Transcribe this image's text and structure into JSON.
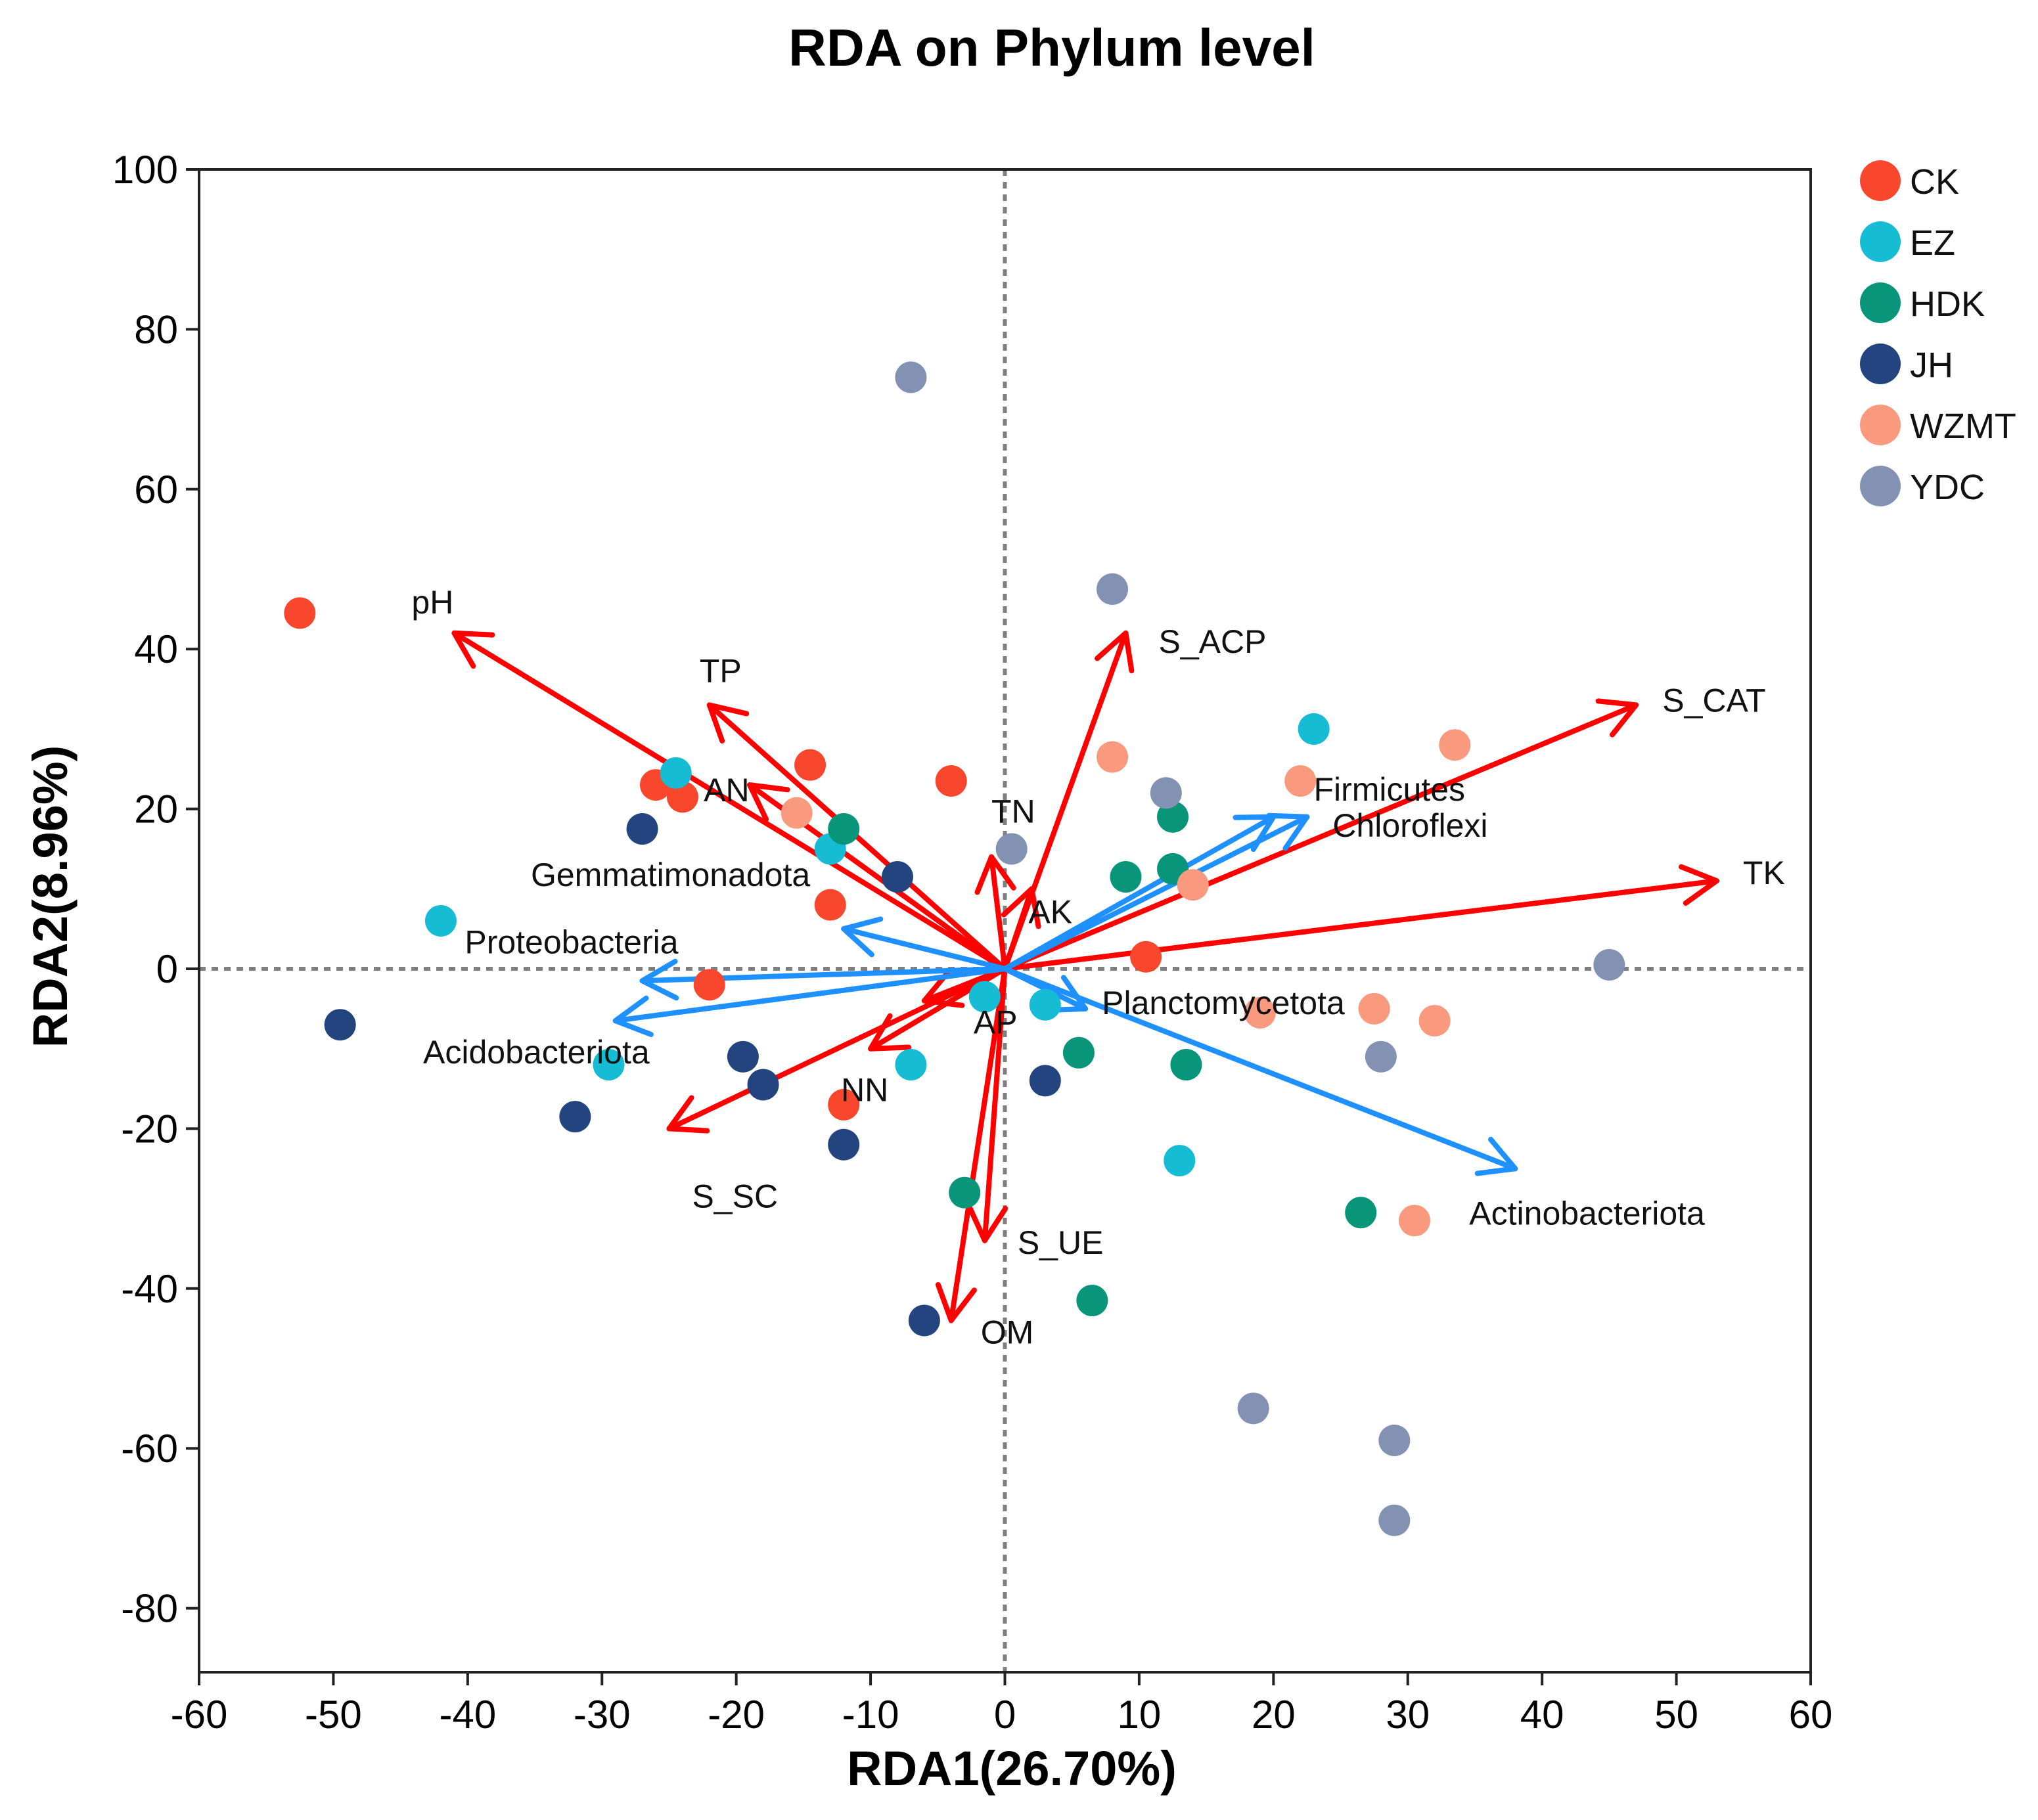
{
  "chart_data": {
    "type": "scatter",
    "title": "RDA on Phylum level",
    "xlabel": "RDA1(26.70%)",
    "ylabel": "RDA2(8.96%)",
    "xlim": [
      -60,
      60
    ],
    "ylim": [
      -88,
      100
    ],
    "xticks": [
      -60,
      -50,
      -40,
      -30,
      -20,
      -10,
      0,
      10,
      20,
      30,
      40,
      50,
      60
    ],
    "yticks": [
      -80,
      -60,
      -40,
      -20,
      0,
      20,
      40,
      60,
      80,
      100
    ],
    "reference_lines": {
      "x": 0,
      "y": 0,
      "style": "dotted",
      "color": "#808080"
    },
    "legend_position": "right",
    "colors": {
      "env_arrow": "#ff0000",
      "species_arrow": "#1e90ff",
      "CK": "#f8472d",
      "EZ": "#15bcd3",
      "HDK": "#09957a",
      "JH": "#23447e",
      "WZMT": "#f99a7e",
      "YDC": "#8391b3"
    },
    "series": [
      {
        "name": "CK",
        "color": "#f8472d",
        "points": [
          [
            -52.5,
            44.5
          ],
          [
            -26,
            23
          ],
          [
            -24,
            21.5
          ],
          [
            -14.5,
            25.5
          ],
          [
            -4,
            23.5
          ],
          [
            -13,
            8
          ],
          [
            -22,
            -2
          ],
          [
            -12,
            -17
          ],
          [
            10.5,
            1.5
          ]
        ]
      },
      {
        "name": "EZ",
        "color": "#15bcd3",
        "points": [
          [
            -24.5,
            24.5
          ],
          [
            -13,
            15
          ],
          [
            -42,
            6
          ],
          [
            -29.5,
            -12
          ],
          [
            -7,
            -12
          ],
          [
            -1.5,
            -3.5
          ],
          [
            3,
            -4.5
          ],
          [
            23,
            30
          ],
          [
            13,
            -24
          ]
        ]
      },
      {
        "name": "HDK",
        "color": "#09957a",
        "points": [
          [
            -12,
            17.5
          ],
          [
            9,
            11.5
          ],
          [
            12.5,
            19
          ],
          [
            12.5,
            12.5
          ],
          [
            5.5,
            -10.5
          ],
          [
            13.5,
            -12
          ],
          [
            -3,
            -28
          ],
          [
            6.5,
            -41.5
          ],
          [
            26.5,
            -30.5
          ]
        ]
      },
      {
        "name": "JH",
        "color": "#23447e",
        "points": [
          [
            -27,
            17.5
          ],
          [
            -8,
            11.5
          ],
          [
            -49.5,
            -7
          ],
          [
            -19.5,
            -11
          ],
          [
            -18,
            -14.5
          ],
          [
            -32,
            -18.5
          ],
          [
            -12,
            -22
          ],
          [
            3,
            -14
          ],
          [
            -6,
            -44
          ]
        ]
      },
      {
        "name": "WZMT",
        "color": "#f99a7e",
        "points": [
          [
            -15.5,
            19.5
          ],
          [
            8,
            26.5
          ],
          [
            22,
            23.5
          ],
          [
            33.5,
            28
          ],
          [
            14,
            10.5
          ],
          [
            19,
            -5.5
          ],
          [
            27.5,
            -5
          ],
          [
            32,
            -6.5
          ],
          [
            30.5,
            -31.5
          ]
        ]
      },
      {
        "name": "YDC",
        "color": "#8391b3",
        "points": [
          [
            -7,
            74
          ],
          [
            8,
            47.5
          ],
          [
            12,
            22
          ],
          [
            0.5,
            15
          ],
          [
            45,
            0.5
          ],
          [
            28,
            -11
          ],
          [
            18.5,
            -55
          ],
          [
            29,
            -59
          ],
          [
            29,
            -69
          ]
        ]
      }
    ],
    "env_arrows": [
      {
        "label": "pH",
        "x": -41,
        "y": 42
      },
      {
        "label": "TP",
        "x": -22,
        "y": 33
      },
      {
        "label": "AN",
        "x": -19,
        "y": 23
      },
      {
        "label": "TN",
        "x": -1,
        "y": 14
      },
      {
        "label": "AK",
        "x": 2,
        "y": 10
      },
      {
        "label": "S_ACP",
        "x": 9,
        "y": 42
      },
      {
        "label": "S_CAT",
        "x": 47,
        "y": 33
      },
      {
        "label": "TK",
        "x": 53,
        "y": 11
      },
      {
        "label": "NN",
        "x": -10,
        "y": -10
      },
      {
        "label": "AP",
        "x": -6,
        "y": -4
      },
      {
        "label": "S_SC",
        "x": -25,
        "y": -20
      },
      {
        "label": "S_UE",
        "x": -1.5,
        "y": -34
      },
      {
        "label": "OM",
        "x": -4,
        "y": -44
      }
    ],
    "species_arrows": [
      {
        "label": "Firmicutes",
        "x": 22.5,
        "y": 19
      },
      {
        "label": "Chloroflexi",
        "x": 20,
        "y": 19
      },
      {
        "label": "Gemmatimonadota",
        "x": -12,
        "y": 5
      },
      {
        "label": "Proteobacteria",
        "x": -27,
        "y": -1.5
      },
      {
        "label": "Acidobacteriota",
        "x": -29,
        "y": -6.5
      },
      {
        "label": "Planctomycetota",
        "x": 6,
        "y": -5
      },
      {
        "label": "Actinobacteriota",
        "x": 38,
        "y": -25
      }
    ],
    "arrow_origin": [
      0,
      0
    ]
  }
}
